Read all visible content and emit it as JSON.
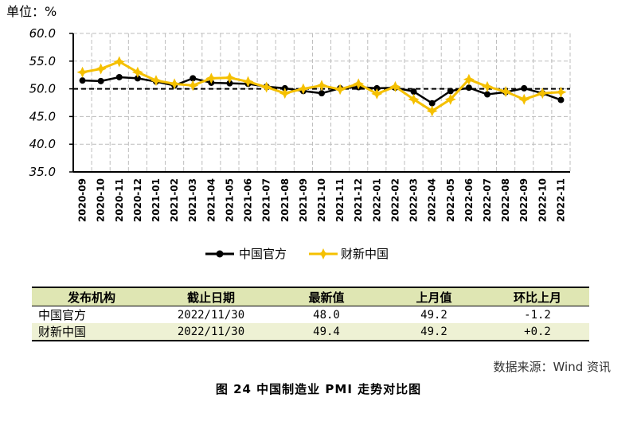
{
  "chart_data": {
    "type": "line",
    "unit_label": "单位：%",
    "categories": [
      "2020-09",
      "2020-10",
      "2020-11",
      "2020-12",
      "2021-01",
      "2021-02",
      "2021-03",
      "2021-04",
      "2021-05",
      "2021-06",
      "2021-07",
      "2021-08",
      "2021-09",
      "2021-10",
      "2021-11",
      "2021-12",
      "2022-01",
      "2022-02",
      "2022-03",
      "2022-04",
      "2022-05",
      "2022-06",
      "2022-07",
      "2022-08",
      "2022-09",
      "2022-10",
      "2022-11"
    ],
    "ylim": [
      35.0,
      60.0
    ],
    "yticks": [
      "60.0",
      "55.0",
      "50.0",
      "45.0",
      "40.0",
      "35.0"
    ],
    "ytick_values": [
      60,
      55,
      50,
      45,
      40,
      35
    ],
    "reference_line": 50.0,
    "grid": true,
    "legend_position": "bottom",
    "series": [
      {
        "name": "中国官方",
        "color": "#000000",
        "values": [
          51.5,
          51.4,
          52.1,
          51.9,
          51.3,
          50.6,
          51.9,
          51.1,
          51.0,
          50.9,
          50.4,
          50.1,
          49.6,
          49.2,
          50.1,
          50.3,
          50.1,
          50.2,
          49.5,
          47.4,
          49.6,
          50.2,
          49.0,
          49.4,
          50.1,
          49.2,
          48.0
        ]
      },
      {
        "name": "财新中国",
        "color": "#f5c000",
        "values": [
          53.0,
          53.6,
          54.9,
          53.0,
          51.5,
          50.9,
          50.6,
          51.9,
          52.0,
          51.3,
          50.3,
          49.2,
          50.0,
          50.6,
          49.9,
          50.9,
          49.1,
          50.4,
          48.1,
          46.0,
          48.1,
          51.7,
          50.4,
          49.5,
          48.1,
          49.2,
          49.4
        ]
      }
    ]
  },
  "table": {
    "headers": [
      "发布机构",
      "截止日期",
      "最新值",
      "上月值",
      "环比上月"
    ],
    "rows": [
      [
        "中国官方",
        "2022/11/30",
        "48.0",
        "49.2",
        "-1.2"
      ],
      [
        "财新中国",
        "2022/11/30",
        "49.4",
        "49.2",
        "+0.2"
      ]
    ]
  },
  "source": "数据来源：Wind 资讯",
  "caption": "图 24   中国制造业 PMI 走势对比图"
}
